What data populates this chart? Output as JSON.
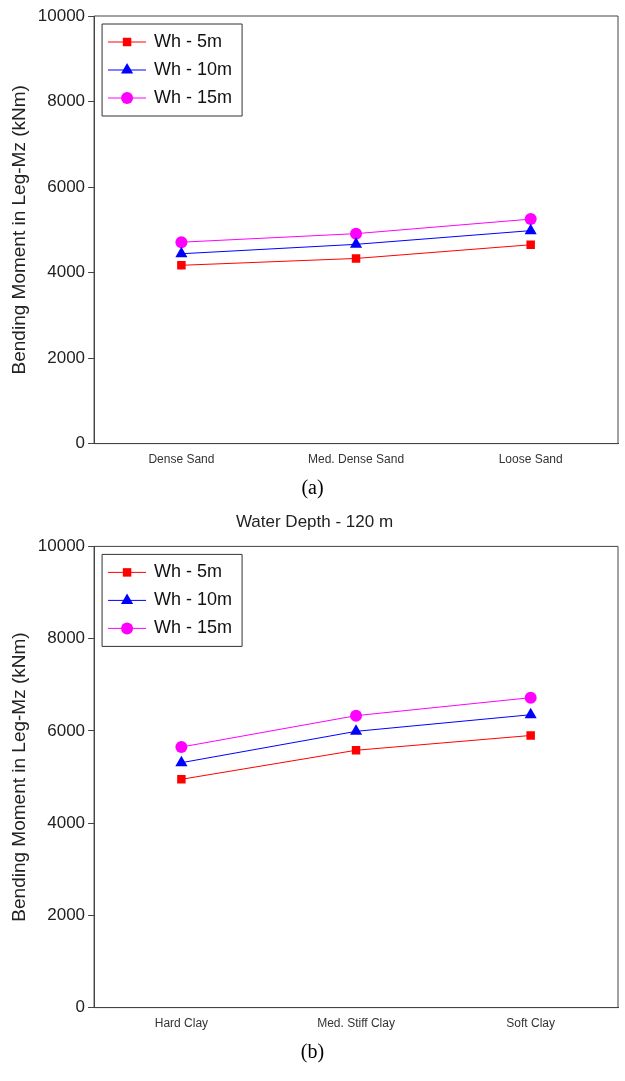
{
  "chart_data": [
    {
      "type": "line",
      "categories": [
        "Dense Sand",
        "Med. Dense Sand",
        "Loose Sand"
      ],
      "ylabel": "Bending Moment in Leg-Mz (kNm)",
      "ylim": [
        0,
        10000
      ],
      "yticks": [
        0,
        2000,
        4000,
        6000,
        8000,
        10000
      ],
      "grid": false,
      "legend": "top left",
      "annotations": [
        "(a)"
      ],
      "series": [
        {
          "name": "Wh - 5m",
          "color": "#ff0000",
          "marker": "square",
          "values": [
            4170,
            4330,
            4650
          ]
        },
        {
          "name": "Wh - 10m",
          "color": "#0000ff",
          "marker": "triangle",
          "values": [
            4440,
            4660,
            4980
          ]
        },
        {
          "name": "Wh - 15m",
          "color": "#ff00ff",
          "marker": "circle",
          "values": [
            4710,
            4910,
            5250
          ]
        }
      ]
    },
    {
      "type": "line",
      "title": "Water Depth - 120 m",
      "categories": [
        "Hard Clay",
        "Med. Stiff Clay",
        "Soft Clay"
      ],
      "ylabel": "Bending Moment in Leg-Mz (kNm)",
      "ylim": [
        0,
        10000
      ],
      "yticks": [
        0,
        2000,
        4000,
        6000,
        8000,
        10000
      ],
      "grid": false,
      "legend": "top left",
      "annotations": [
        "(b)"
      ],
      "series": [
        {
          "name": "Wh - 5m",
          "color": "#ff0000",
          "marker": "square",
          "values": [
            4950,
            5580,
            5900
          ]
        },
        {
          "name": "Wh - 10m",
          "color": "#0000ff",
          "marker": "triangle",
          "values": [
            5310,
            5990,
            6350
          ]
        },
        {
          "name": "Wh - 15m",
          "color": "#ff00ff",
          "marker": "circle",
          "values": [
            5650,
            6330,
            6720
          ]
        }
      ]
    }
  ]
}
